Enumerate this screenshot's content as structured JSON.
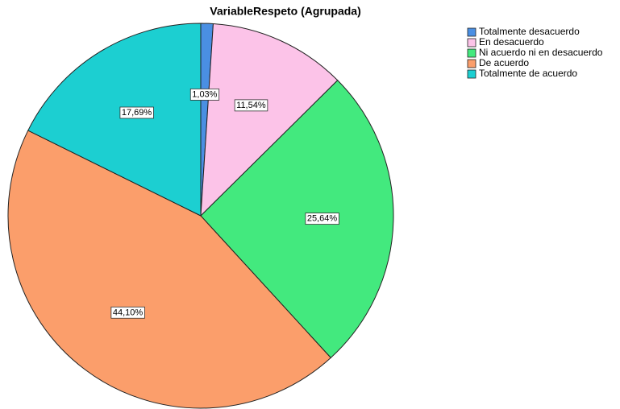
{
  "chart_data": {
    "type": "pie",
    "title": "VariableRespeto (Agrupada)",
    "categories": [
      "Totalmente desacuerdo",
      "En desacuerdo",
      "Ni acuerdo ni en desacuerdo",
      "De acuerdo",
      "Totalmente de acuerdo"
    ],
    "values": [
      1.03,
      11.54,
      25.64,
      44.1,
      17.69
    ],
    "value_labels": [
      "1,03%",
      "11,54%",
      "25,64%",
      "44,10%",
      "17,69%"
    ],
    "colors": [
      "#4a8fe3",
      "#fcc3e8",
      "#43e97e",
      "#fb9e6b",
      "#1ccfd1"
    ],
    "legend": "top-right"
  }
}
